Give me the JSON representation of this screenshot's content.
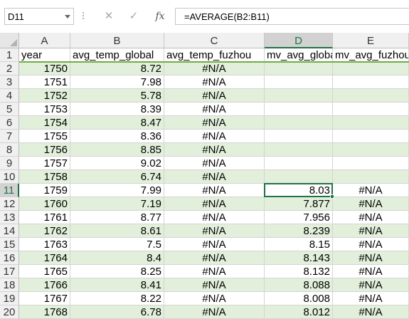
{
  "name_box": "D11",
  "formula": "=AVERAGE(B2:B11)",
  "icons": {
    "cancel": "cancel-x-icon",
    "enter": "checkmark-icon",
    "function": "fx-icon"
  },
  "accent_color": "#217346",
  "band_color": "#e2efda",
  "columns": [
    "A",
    "B",
    "C",
    "D",
    "E"
  ],
  "selected_column": "D",
  "selected_row": "11",
  "headers": [
    "year",
    "avg_temp_global",
    "avg_temp_fuzhou",
    "mv_avg_global",
    "mv_avg_fuzhou"
  ],
  "rows": [
    {
      "n": "1"
    },
    {
      "n": "2",
      "a": "1750",
      "b": "8.72",
      "c": "#N/A",
      "d": "",
      "e": ""
    },
    {
      "n": "3",
      "a": "1751",
      "b": "7.98",
      "c": "#N/A",
      "d": "",
      "e": ""
    },
    {
      "n": "4",
      "a": "1752",
      "b": "5.78",
      "c": "#N/A",
      "d": "",
      "e": ""
    },
    {
      "n": "5",
      "a": "1753",
      "b": "8.39",
      "c": "#N/A",
      "d": "",
      "e": ""
    },
    {
      "n": "6",
      "a": "1754",
      "b": "8.47",
      "c": "#N/A",
      "d": "",
      "e": ""
    },
    {
      "n": "7",
      "a": "1755",
      "b": "8.36",
      "c": "#N/A",
      "d": "",
      "e": ""
    },
    {
      "n": "8",
      "a": "1756",
      "b": "8.85",
      "c": "#N/A",
      "d": "",
      "e": ""
    },
    {
      "n": "9",
      "a": "1757",
      "b": "9.02",
      "c": "#N/A",
      "d": "",
      "e": ""
    },
    {
      "n": "10",
      "a": "1758",
      "b": "6.74",
      "c": "#N/A",
      "d": "",
      "e": ""
    },
    {
      "n": "11",
      "a": "1759",
      "b": "7.99",
      "c": "#N/A",
      "d": "8.03",
      "e": "#N/A"
    },
    {
      "n": "12",
      "a": "1760",
      "b": "7.19",
      "c": "#N/A",
      "d": "7.877",
      "e": "#N/A"
    },
    {
      "n": "13",
      "a": "1761",
      "b": "8.77",
      "c": "#N/A",
      "d": "7.956",
      "e": "#N/A"
    },
    {
      "n": "14",
      "a": "1762",
      "b": "8.61",
      "c": "#N/A",
      "d": "8.239",
      "e": "#N/A"
    },
    {
      "n": "15",
      "a": "1763",
      "b": "7.5",
      "c": "#N/A",
      "d": "8.15",
      "e": "#N/A"
    },
    {
      "n": "16",
      "a": "1764",
      "b": "8.4",
      "c": "#N/A",
      "d": "8.143",
      "e": "#N/A"
    },
    {
      "n": "17",
      "a": "1765",
      "b": "8.25",
      "c": "#N/A",
      "d": "8.132",
      "e": "#N/A"
    },
    {
      "n": "18",
      "a": "1766",
      "b": "8.41",
      "c": "#N/A",
      "d": "8.088",
      "e": "#N/A"
    },
    {
      "n": "19",
      "a": "1767",
      "b": "8.22",
      "c": "#N/A",
      "d": "8.008",
      "e": "#N/A"
    },
    {
      "n": "20",
      "a": "1768",
      "b": "6.78",
      "c": "#N/A",
      "d": "8.012",
      "e": "#N/A"
    }
  ]
}
